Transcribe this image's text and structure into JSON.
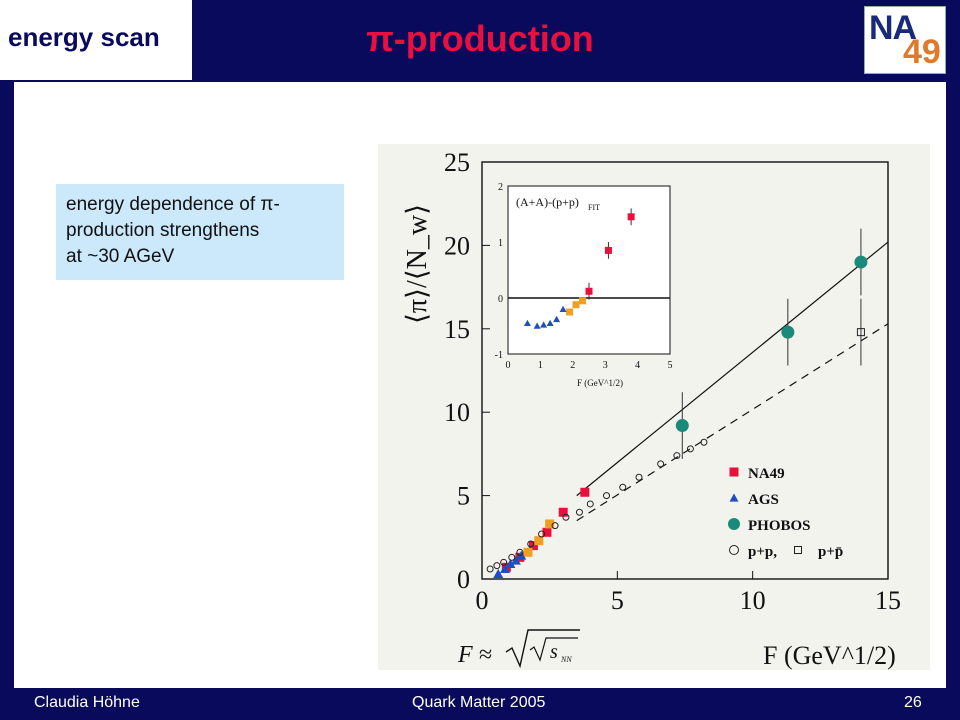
{
  "slide": {
    "corner_label": "energy scan",
    "title": "π-production",
    "logo_top": "NA",
    "logo_bottom": "49",
    "note": [
      "energy dependence of π-",
      "production strengthens",
      "at ~30 AGeV"
    ],
    "footer_left": "Claudia Höhne",
    "footer_center": "Quark Matter 2005",
    "footer_right": "26",
    "formula": "F ≈ √(√s_NN)"
  },
  "colors": {
    "background": "#0a0a5c",
    "title": "#e8103c",
    "note_box": "#cce8fb"
  },
  "chart_data": [
    {
      "type": "scatter",
      "ylabel": "⟨π⟩/⟨N_w⟩",
      "xlabel": "F (GeV^1/2)",
      "xlim": [
        0,
        15
      ],
      "ylim": [
        0,
        25
      ],
      "xticks": [
        "0",
        "5",
        "10",
        "15"
      ],
      "yticks": [
        "0",
        "5",
        "10",
        "15",
        "20",
        "25"
      ],
      "legend": [
        "NA49",
        "AGS",
        "PHOBOS",
        "p+p,",
        "p+p̄"
      ],
      "series": [
        {
          "name": "NA49",
          "color": "#e8103c",
          "x": [
            0.9,
            1.4,
            1.9,
            2.4,
            3.0,
            3.8
          ],
          "y": [
            0.7,
            1.3,
            2.0,
            2.8,
            4.0,
            5.2
          ]
        },
        {
          "name": "NA49 (light)",
          "color": "#f0a020",
          "x": [
            1.7,
            2.1,
            2.5
          ],
          "y": [
            1.6,
            2.3,
            3.3
          ]
        },
        {
          "name": "AGS",
          "color": "#1f4fbf",
          "x": [
            0.6,
            0.85,
            1.05,
            1.25,
            1.45
          ],
          "y": [
            0.3,
            0.6,
            0.9,
            1.1,
            1.4
          ]
        },
        {
          "name": "PHOBOS",
          "color": "#1a8a7a",
          "x": [
            7.4,
            11.3,
            14.0
          ],
          "y": [
            9.2,
            14.8,
            19.0
          ]
        },
        {
          "name": "p+p,",
          "x": [
            0.3,
            0.55,
            0.8,
            1.1,
            1.4,
            1.8,
            2.2,
            2.7,
            3.1,
            3.6,
            4.0,
            4.6,
            5.2,
            5.8,
            6.6,
            7.2,
            7.7,
            8.2
          ],
          "y": [
            0.6,
            0.8,
            1.0,
            1.3,
            1.6,
            2.1,
            2.7,
            3.2,
            3.7,
            4.0,
            4.5,
            5.0,
            5.5,
            6.1,
            6.9,
            7.4,
            7.8,
            8.2
          ]
        },
        {
          "name": "p+p̄",
          "x": [
            14.0
          ],
          "y": [
            14.8
          ]
        }
      ],
      "lines": [
        {
          "style": "solid",
          "x": [
            3.5,
            15.0
          ],
          "y": [
            5.0,
            20.2
          ]
        },
        {
          "style": "dashed",
          "x": [
            3.5,
            15.0
          ],
          "y": [
            3.5,
            15.3
          ]
        }
      ]
    },
    {
      "type": "scatter",
      "title": "(A+A)-(p+p)",
      "title_sub": "FIT",
      "xlabel": "F (GeV^1/2)",
      "xlim": [
        0,
        5
      ],
      "ylim": [
        -1,
        2
      ],
      "xticks": [
        "0",
        "1",
        "2",
        "3",
        "4",
        "5"
      ],
      "yticks": [
        "-1",
        "0",
        "1",
        "2"
      ],
      "series": [
        {
          "name": "NA49",
          "color": "#e8103c",
          "x": [
            3.1,
            3.8,
            2.5
          ],
          "y": [
            0.85,
            1.45,
            0.12
          ]
        },
        {
          "name": "NA49 (light)",
          "color": "#f0a020",
          "x": [
            1.9,
            2.1,
            2.3
          ],
          "y": [
            -0.25,
            -0.12,
            -0.05
          ]
        },
        {
          "name": "AGS",
          "color": "#1f4fbf",
          "x": [
            0.6,
            0.9,
            1.1,
            1.3,
            1.5,
            1.7
          ],
          "y": [
            -0.45,
            -0.5,
            -0.48,
            -0.45,
            -0.38,
            -0.2
          ]
        }
      ]
    }
  ]
}
